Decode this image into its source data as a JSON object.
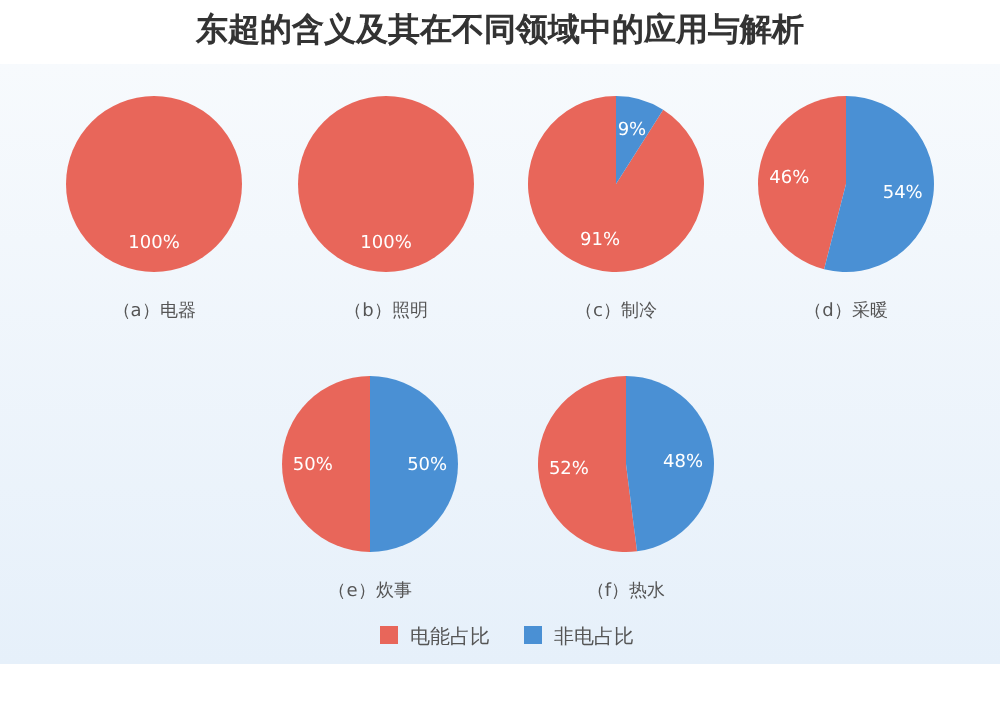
{
  "chart_data": [
    {
      "type": "pie",
      "title": "（a）电器",
      "annotations": [
        "东超的含义及其在不同领域中的应用与解析"
      ],
      "categories": [
        null,
        null
      ],
      "values": [
        100,
        0
      ],
      "colors": [
        "#e8665a",
        "#4a90d4"
      ],
      "value_labels": [
        "100%",
        null
      ]
    },
    {
      "type": "pie",
      "title": "（b）照明",
      "categories": [
        null,
        null
      ],
      "values": [
        100,
        0
      ],
      "colors": [
        "#e8665a",
        "#4a90d4"
      ],
      "value_labels": [
        "100%",
        null
      ]
    },
    {
      "type": "pie",
      "title": "（c）制冷",
      "categories": [
        null,
        null
      ],
      "values": [
        91,
        9
      ],
      "colors": [
        "#e8665a",
        "#4a90d4"
      ],
      "value_labels": [
        "91%",
        "9%"
      ]
    },
    {
      "type": "pie",
      "title": "（d）采暖",
      "categories": [
        null,
        null
      ],
      "values": [
        46,
        54
      ],
      "colors": [
        "#e8665a",
        "#4a90d4"
      ],
      "value_labels": [
        "46%",
        "54%"
      ]
    },
    {
      "type": "pie",
      "title": "（e）炊事",
      "categories": [
        null,
        null
      ],
      "values": [
        50,
        50
      ],
      "colors": [
        "#e8665a",
        "#4a90d4"
      ],
      "value_labels": [
        "50%",
        "50%"
      ]
    },
    {
      "type": "pie",
      "title": "（f）热水",
      "categories": [
        "电能占比",
        "非电占比"
      ],
      "values": [
        52,
        48
      ],
      "colors": [
        "#e8665a",
        "#4a90d4"
      ],
      "value_labels": [
        "52%",
        "48%"
      ],
      "legend": "bottom"
    }
  ]
}
